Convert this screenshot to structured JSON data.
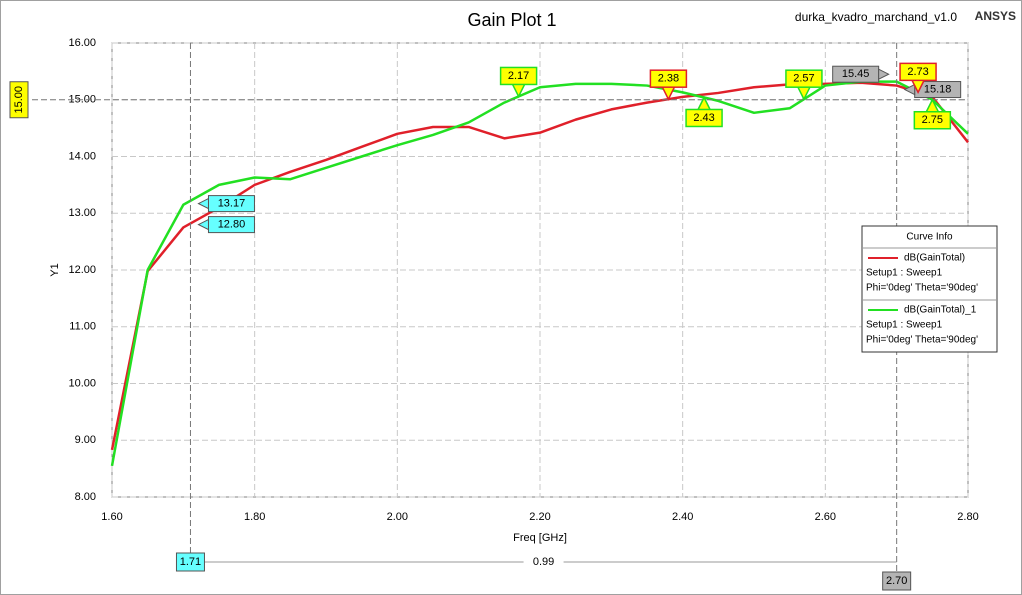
{
  "chart_data": {
    "type": "line",
    "title": "Gain Plot 1",
    "subtitle": "durka_kvadro_marchand_v1.0",
    "brand": "ANSYS",
    "xlabel": "Freq [GHz]",
    "ylabel": "Y1",
    "x": [
      1.6,
      1.65,
      1.7,
      1.75,
      1.8,
      1.85,
      1.9,
      1.95,
      2.0,
      2.05,
      2.1,
      2.15,
      2.2,
      2.25,
      2.3,
      2.35,
      2.4,
      2.45,
      2.5,
      2.55,
      2.6,
      2.65,
      2.7,
      2.75,
      2.8
    ],
    "series": [
      {
        "name": "dB(GainTotal)",
        "setup": "Setup1 : Sweep1",
        "variation": "Phi='0deg' Theta='90deg'",
        "color": "#e0202a",
        "values": [
          8.83,
          11.98,
          12.75,
          13.1,
          13.5,
          13.73,
          13.94,
          14.17,
          14.4,
          14.52,
          14.52,
          14.32,
          14.42,
          14.65,
          14.83,
          14.95,
          15.05,
          15.12,
          15.22,
          15.27,
          15.28,
          15.3,
          15.25,
          15.05,
          14.25
        ]
      },
      {
        "name": "dB(GainTotal)_1",
        "setup": "Setup1 : Sweep1",
        "variation": "Phi='0deg' Theta='90deg'",
        "color": "#22e022",
        "values": [
          8.55,
          12.0,
          13.15,
          13.5,
          13.63,
          13.6,
          13.8,
          14.0,
          14.2,
          14.38,
          14.6,
          14.95,
          15.22,
          15.28,
          15.28,
          15.25,
          15.13,
          14.98,
          14.77,
          14.85,
          15.25,
          15.32,
          15.32,
          15.0,
          14.4
        ]
      }
    ],
    "legend_title": "Curve Info",
    "xlim": [
      1.6,
      2.8
    ],
    "ylim": [
      8,
      16
    ],
    "xticks": [
      {
        "value": 1.6,
        "label": "1.60"
      },
      {
        "value": 1.8,
        "label": "1.80"
      },
      {
        "value": 2.0,
        "label": "2.00"
      },
      {
        "value": 2.2,
        "label": "2.20"
      },
      {
        "value": 2.4,
        "label": "2.40"
      },
      {
        "value": 2.6,
        "label": "2.60"
      },
      {
        "value": 2.8,
        "label": "2.80"
      }
    ],
    "yticks": [
      {
        "value": 8,
        "label": "8.00"
      },
      {
        "value": 9,
        "label": "9.00"
      },
      {
        "value": 10,
        "label": "10.00"
      },
      {
        "value": 11,
        "label": "11.00"
      },
      {
        "value": 12,
        "label": "12.00"
      },
      {
        "value": 13,
        "label": "13.00"
      },
      {
        "value": 14,
        "label": "14.00"
      },
      {
        "value": 15,
        "label": "15.00"
      },
      {
        "value": 16,
        "label": "16.00"
      }
    ],
    "grid": true,
    "markers": [
      {
        "value": 2.17,
        "color": "#22e022"
      },
      {
        "value": 2.43,
        "color": "#22e022"
      },
      {
        "value": 2.57,
        "color": "#22e022"
      },
      {
        "value": 2.75,
        "color": "#22e022"
      },
      {
        "value": 2.38,
        "color": "#e0202a"
      },
      {
        "value": 2.73,
        "color": "#e0202a"
      }
    ],
    "x_cursors": [
      {
        "value": 1.71,
        "label": "1.71",
        "color": "#66ffff"
      },
      {
        "value": 2.7,
        "label": "2.70",
        "color": "#b4b4b4"
      }
    ],
    "cursor_delta": 0.99,
    "y_cursor": {
      "value": 15,
      "label": "15.00",
      "color": "#ffff00"
    },
    "readouts": [
      {
        "value": 13.17,
        "color": "#66ffff",
        "cursor": 0
      },
      {
        "value": {
          "value": 12.8,
          "label": "12.80"
        },
        "color": "#66ffff",
        "cursor": 0
      },
      {
        "value": 15.45,
        "color": "#b4b4b4",
        "cursor": 1
      },
      {
        "value": 15.18,
        "color": "#b4b4b4",
        "cursor": 1
      }
    ]
  }
}
